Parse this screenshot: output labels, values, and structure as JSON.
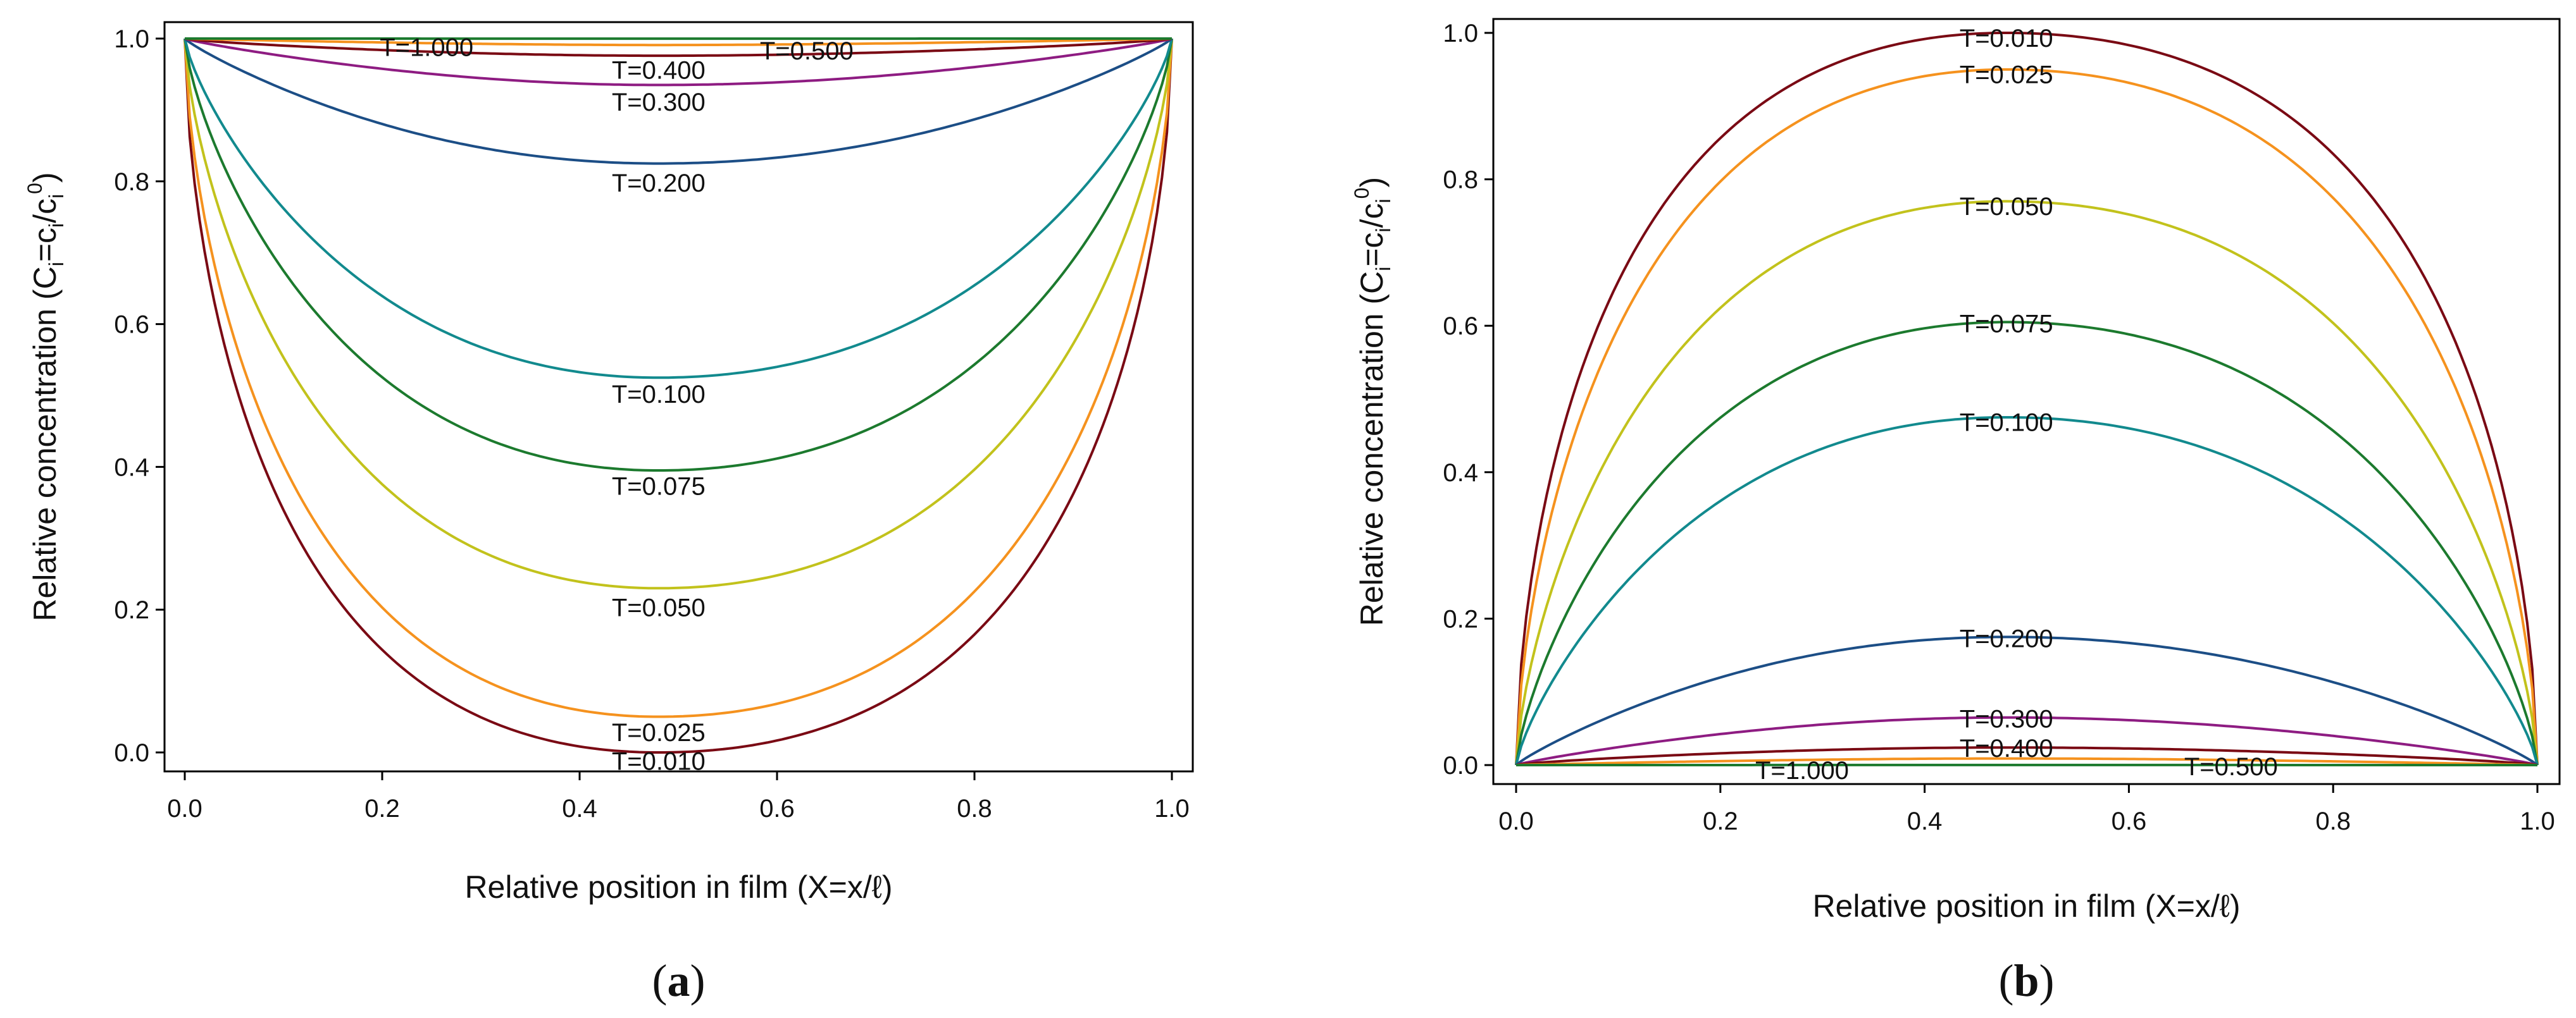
{
  "chart_data": [
    {
      "type": "line",
      "panel_label_pre": "(",
      "panel_label_mid": "a",
      "panel_label_post": ")",
      "xlabel": "Relative position in film (X=x/ℓ)",
      "ylabel": {
        "pre": "Relative concentration (C",
        "s1": "i",
        "mid": "=c",
        "s2": "i",
        "slash": "/c",
        "s3": "i",
        "sup": "0",
        "post": ")"
      },
      "xlim": [
        0.0,
        1.0
      ],
      "ylim": [
        0.0,
        1.0
      ],
      "xticks": [
        "0.0",
        "0.2",
        "0.4",
        "0.6",
        "0.8",
        "1.0"
      ],
      "yticks": [
        "0.0",
        "0.2",
        "0.4",
        "0.6",
        "0.8",
        "1.0"
      ],
      "grid": false,
      "legend": "none",
      "series": [
        {
          "name": "T=0.010",
          "color": "#7a0a14",
          "min_x": 0.48,
          "min_y": 0.0
        },
        {
          "name": "T=0.025",
          "color": "#f5921e",
          "min_x": 0.48,
          "min_y": 0.05
        },
        {
          "name": "T=0.050",
          "color": "#c2c21c",
          "min_x": 0.48,
          "min_y": 0.23
        },
        {
          "name": "T=0.075",
          "color": "#1c7a2e",
          "min_x": 0.48,
          "min_y": 0.395
        },
        {
          "name": "T=0.100",
          "color": "#128a8e",
          "min_x": 0.48,
          "min_y": 0.525
        },
        {
          "name": "T=0.200",
          "color": "#1c4e86",
          "min_x": 0.48,
          "min_y": 0.825
        },
        {
          "name": "T=0.300",
          "color": "#8e1c82",
          "min_x": 0.48,
          "min_y": 0.935
        },
        {
          "name": "T=0.400",
          "color": "#7a0a14",
          "min_x": 0.48,
          "min_y": 0.976
        },
        {
          "name": "T=0.500",
          "color": "#f5921e",
          "min_x": 0.48,
          "min_y": 0.991
        },
        {
          "name": "T=1.000",
          "color": "#1c7a2e",
          "min_x": 0.48,
          "min_y": 0.9999
        }
      ],
      "annotations": [
        {
          "text": "T=1.000",
          "x": 0.245,
          "y": 0.99
        },
        {
          "text": "T=0.500",
          "x": 0.63,
          "y": 0.985
        },
        {
          "text": "T=0.400",
          "x": 0.48,
          "y": 0.958
        },
        {
          "text": "T=0.300",
          "x": 0.48,
          "y": 0.913
        },
        {
          "text": "T=0.200",
          "x": 0.48,
          "y": 0.8
        },
        {
          "text": "T=0.100",
          "x": 0.48,
          "y": 0.504
        },
        {
          "text": "T=0.075",
          "x": 0.48,
          "y": 0.375
        },
        {
          "text": "T=0.050",
          "x": 0.48,
          "y": 0.205
        },
        {
          "text": "T=0.025",
          "x": 0.48,
          "y": 0.03
        },
        {
          "text": "T=0.010",
          "x": 0.48,
          "y": -0.01
        }
      ]
    },
    {
      "type": "line",
      "panel_label_pre": "(",
      "panel_label_mid": "b",
      "panel_label_post": ")",
      "xlabel": "Relative position in film (X=x/ℓ)",
      "ylabel": {
        "pre": "Relative concentration (C",
        "s1": "i",
        "mid": "=c",
        "s2": "i",
        "slash": "/c",
        "s3": "i",
        "sup": "0",
        "post": ")"
      },
      "xlim": [
        0.0,
        1.0
      ],
      "ylim": [
        0.0,
        1.0
      ],
      "xticks": [
        "0.0",
        "0.2",
        "0.4",
        "0.6",
        "0.8",
        "1.0"
      ],
      "yticks": [
        "0.0",
        "0.2",
        "0.4",
        "0.6",
        "0.8",
        "1.0"
      ],
      "grid": false,
      "legend": "none",
      "series": [
        {
          "name": "T=0.010",
          "color": "#7a0a14",
          "peak_x": 0.48,
          "peak_y": 1.0
        },
        {
          "name": "T=0.025",
          "color": "#f5921e",
          "peak_x": 0.48,
          "peak_y": 0.95
        },
        {
          "name": "T=0.050",
          "color": "#c2c21c",
          "peak_x": 0.48,
          "peak_y": 0.77
        },
        {
          "name": "T=0.075",
          "color": "#1c7a2e",
          "peak_x": 0.48,
          "peak_y": 0.605
        },
        {
          "name": "T=0.100",
          "color": "#128a8e",
          "peak_x": 0.48,
          "peak_y": 0.475
        },
        {
          "name": "T=0.200",
          "color": "#1c4e86",
          "peak_x": 0.48,
          "peak_y": 0.175
        },
        {
          "name": "T=0.300",
          "color": "#8e1c82",
          "peak_x": 0.48,
          "peak_y": 0.065
        },
        {
          "name": "T=0.400",
          "color": "#7a0a14",
          "peak_x": 0.48,
          "peak_y": 0.024
        },
        {
          "name": "T=0.500",
          "color": "#f5921e",
          "peak_x": 0.48,
          "peak_y": 0.009
        },
        {
          "name": "T=1.000",
          "color": "#1c7a2e",
          "peak_x": 0.48,
          "peak_y": 0.0001
        }
      ],
      "annotations": [
        {
          "text": "T=0.010",
          "x": 0.48,
          "y": 0.995
        },
        {
          "text": "T=0.025",
          "x": 0.48,
          "y": 0.945
        },
        {
          "text": "T=0.050",
          "x": 0.48,
          "y": 0.765
        },
        {
          "text": "T=0.075",
          "x": 0.48,
          "y": 0.605
        },
        {
          "text": "T=0.100",
          "x": 0.48,
          "y": 0.47
        },
        {
          "text": "T=0.200",
          "x": 0.48,
          "y": 0.175
        },
        {
          "text": "T=0.300",
          "x": 0.48,
          "y": 0.065
        },
        {
          "text": "T=0.400",
          "x": 0.48,
          "y": 0.025
        },
        {
          "text": "T=0.500",
          "x": 0.7,
          "y": 0.0
        },
        {
          "text": "T=1.000",
          "x": 0.28,
          "y": -0.005
        }
      ]
    }
  ]
}
